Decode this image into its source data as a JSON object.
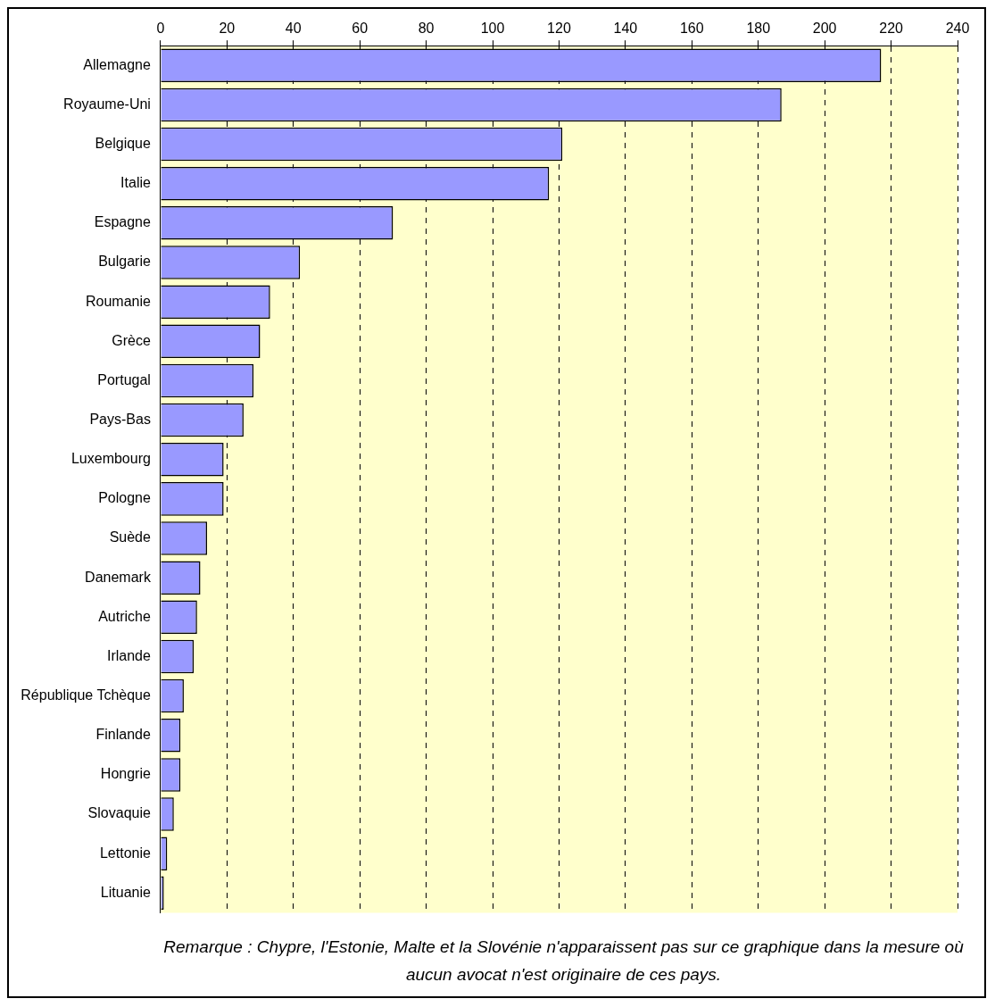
{
  "chart_data": {
    "type": "bar",
    "orientation": "horizontal",
    "categories": [
      "Allemagne",
      "Royaume-Uni",
      "Belgique",
      "Italie",
      "Espagne",
      "Bulgarie",
      "Roumanie",
      "Grèce",
      "Portugal",
      "Pays-Bas",
      "Luxembourg",
      "Pologne",
      "Suède",
      "Danemark",
      "Autriche",
      "Irlande",
      "République Tchèque",
      "Finlande",
      "Hongrie",
      "Slovaquie",
      "Lettonie",
      "Lituanie"
    ],
    "values": [
      217,
      187,
      121,
      117,
      70,
      42,
      33,
      30,
      28,
      25,
      19,
      19,
      14,
      12,
      11,
      10,
      7,
      6,
      6,
      4,
      2,
      1
    ],
    "color": "#9999ff",
    "xlim": [
      0,
      240
    ],
    "xticks": [
      0,
      20,
      40,
      60,
      80,
      100,
      120,
      140,
      160,
      180,
      200,
      220,
      240
    ],
    "grid": "x",
    "legend": false,
    "annotations": [
      "Remarque : Chypre, l'Estonie, Malte et la Slovénie n'apparaissent pas sur ce graphique dans la mesure où aucun avocat n'est originaire de ces pays."
    ]
  }
}
